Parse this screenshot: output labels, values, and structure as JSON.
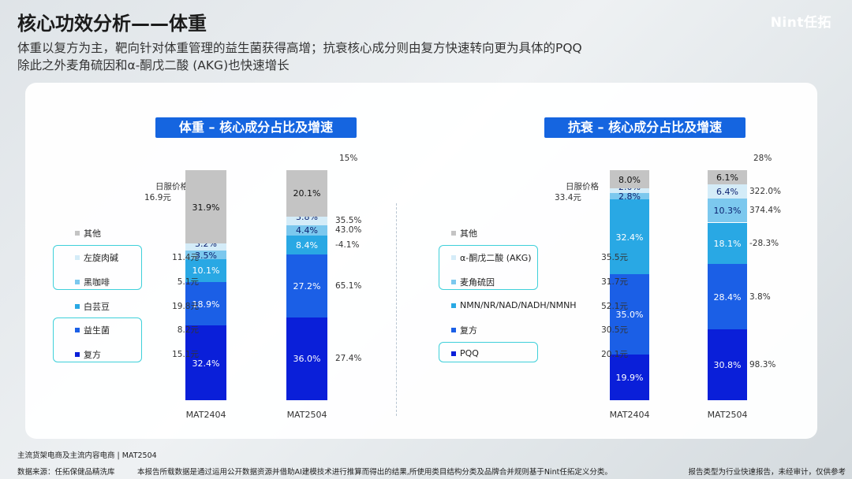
{
  "header": {
    "title": "核心功效分析——体重",
    "brand": "Nint任拓",
    "subtitle_1": "体重以复方为主，靶向针对体重管理的益生菌获得高增；抗衰核心成分则由复方快速转向更为具体的PQQ",
    "subtitle_2": "除此之外麦角硫因和α-酮戊二酸 (AKG)也快速增长"
  },
  "colors": {
    "level1": "#0a1fd9",
    "level2": "#1b5fe6",
    "level3": "#29a8e4",
    "level4": "#7cc8ee",
    "level5": "#d4ecf8",
    "level6": "#c4c4c4",
    "accent": "#3fd0da",
    "title_bg": "#1565e0"
  },
  "chart_data": [
    {
      "type": "bar",
      "stacked": true,
      "title": "体重 – 核心成分占比及增速",
      "categories": [
        "MAT2404",
        "MAT2504"
      ],
      "price_header": "日服价格",
      "price_header_value": "16.9元",
      "total_growth": "15%",
      "series": [
        {
          "name": "复方",
          "values": [
            32.4,
            36.0
          ],
          "labels": [
            "32.4%",
            "36.0%"
          ],
          "price": "15.1元",
          "growth": "27.4%",
          "highlight": true
        },
        {
          "name": "益生菌",
          "values": [
            18.9,
            27.2
          ],
          "labels": [
            "18.9%",
            "27.2%"
          ],
          "price": "8.2元",
          "growth": "65.1%",
          "highlight": true
        },
        {
          "name": "白芸豆",
          "values": [
            10.1,
            8.4
          ],
          "labels": [
            "10.1%",
            "8.4%"
          ],
          "price": "19.8元",
          "growth": "-4.1%",
          "highlight": false
        },
        {
          "name": "黑咖啡",
          "values": [
            3.5,
            4.4
          ],
          "labels": [
            "3.5%",
            "4.4%"
          ],
          "price": "5.1元",
          "growth": "43.0%",
          "highlight": true
        },
        {
          "name": "左旋肉碱",
          "values": [
            3.2,
            3.8
          ],
          "labels": [
            "3.2%",
            "3.8%"
          ],
          "price": "11.4元",
          "growth": "35.5%",
          "highlight": true
        },
        {
          "name": "其他",
          "values": [
            31.9,
            20.1
          ],
          "labels": [
            "31.9%",
            "20.1%"
          ],
          "price": "",
          "growth": "",
          "highlight": false
        }
      ]
    },
    {
      "type": "bar",
      "stacked": true,
      "title": "抗衰 – 核心成分占比及增速",
      "categories": [
        "MAT2404",
        "MAT2504"
      ],
      "price_header": "日服价格",
      "price_header_value": "33.4元",
      "total_growth": "28%",
      "series": [
        {
          "name": "PQQ",
          "values": [
            19.9,
            30.8
          ],
          "labels": [
            "19.9%",
            "30.8%"
          ],
          "price": "20.1元",
          "growth": "98.3%",
          "highlight": true
        },
        {
          "name": "复方",
          "values": [
            35.0,
            28.4
          ],
          "labels": [
            "35.0%",
            "28.4%"
          ],
          "price": "30.5元",
          "growth": "3.8%",
          "highlight": false
        },
        {
          "name": "NMN/NR/NAD/NADH/NMNH",
          "values": [
            32.4,
            18.1
          ],
          "labels": [
            "32.4%",
            "18.1%"
          ],
          "price": "52.1元",
          "growth": "-28.3%",
          "highlight": false
        },
        {
          "name": "麦角硫因",
          "values": [
            2.8,
            10.3
          ],
          "labels": [
            "2.8%",
            "10.3%"
          ],
          "price": "31.7元",
          "growth": "374.4%",
          "highlight": true
        },
        {
          "name": "α-酮戊二酸 (AKG)",
          "values": [
            2.0,
            6.4
          ],
          "labels": [
            "2.0%",
            "6.4%"
          ],
          "price": "35.5元",
          "growth": "322.0%",
          "highlight": true
        },
        {
          "name": "其他",
          "values": [
            8.0,
            6.1
          ],
          "labels": [
            "8.0%",
            "6.1%"
          ],
          "price": "",
          "growth": "",
          "highlight": false
        }
      ]
    }
  ],
  "footer": {
    "note": "主流货架电商及主流内容电商 | MAT2504",
    "source": "数据来源：任拓保健品精洗库",
    "disclaimer": "本报告所载数据是通过运用公开数据资源并借助AI建模技术进行推算而得出的结果,所使用类目结构分类及品牌合并规则基于Nint任拓定义分类。",
    "report_type": "报告类型为行业快速报告，未经审计，仅供参考"
  }
}
